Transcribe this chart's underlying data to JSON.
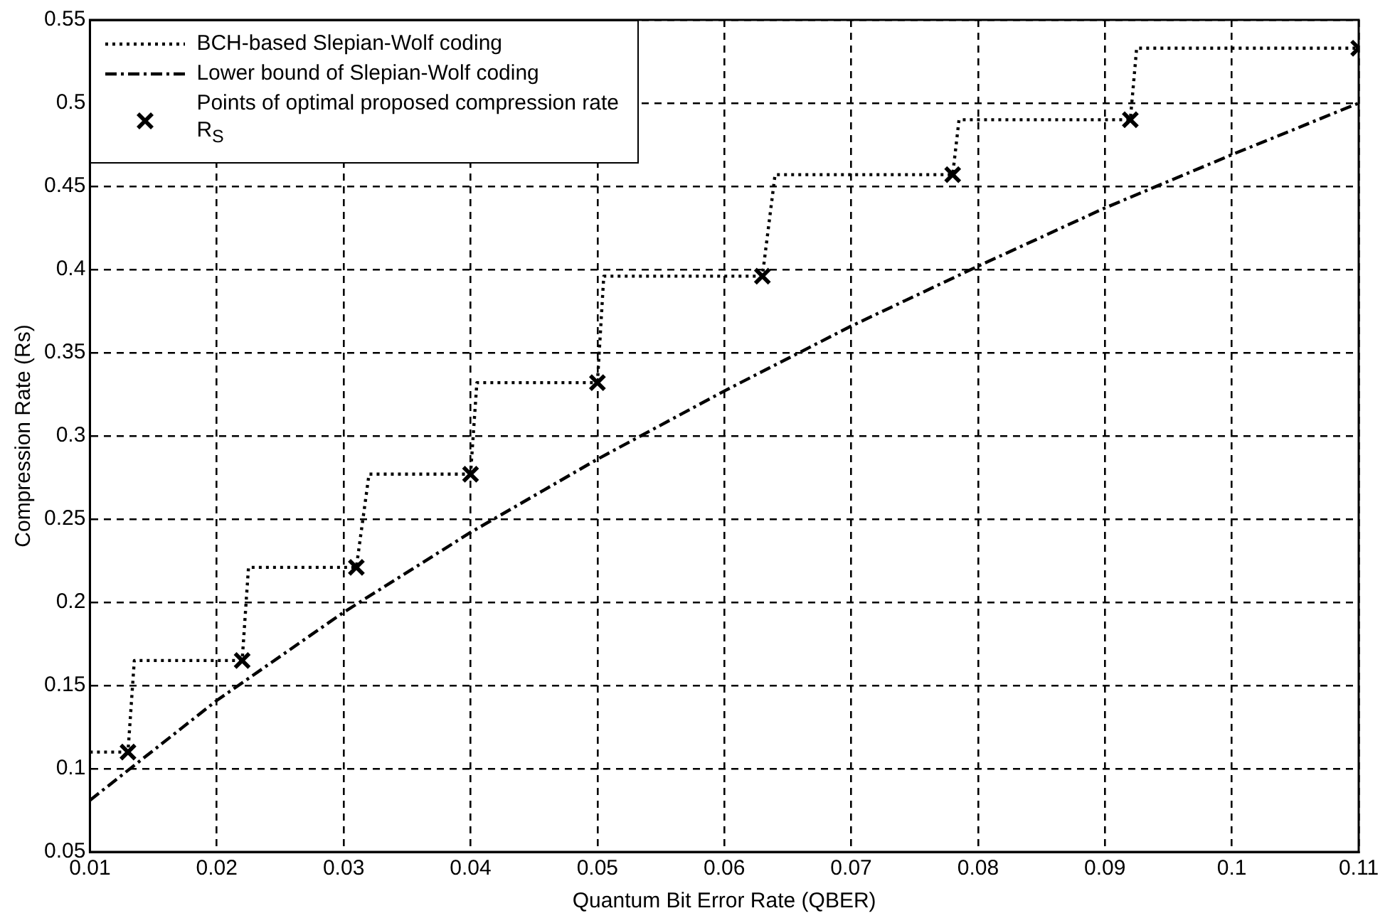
{
  "chart_data": {
    "type": "line",
    "xlabel": "Quantum Bit Error Rate (QBER)",
    "ylabel": "Compression Rate (Rs)",
    "xlim": [
      0.01,
      0.11
    ],
    "xticks": [
      0.01,
      0.02,
      0.03,
      0.04,
      0.05,
      0.06,
      0.07,
      0.08,
      0.09,
      0.1,
      0.11
    ],
    "ylim": [
      0.05,
      0.55
    ],
    "yticks": [
      0.05,
      0.1,
      0.15,
      0.2,
      0.25,
      0.3,
      0.35,
      0.4,
      0.45,
      0.5,
      0.55
    ],
    "grid": true,
    "legend": "top left",
    "series": [
      {
        "type": "line",
        "name": "BCH-based Slepian-Wolf coding",
        "color": "#000000",
        "line_style": "dotted",
        "marker": "none",
        "x": [
          0.01,
          0.013,
          0.0135,
          0.022,
          0.0225,
          0.031,
          0.032,
          0.04,
          0.0405,
          0.05,
          0.0505,
          0.063,
          0.064,
          0.078,
          0.0785,
          0.092,
          0.0925,
          0.11
        ],
        "values": [
          0.11,
          0.11,
          0.165,
          0.165,
          0.221,
          0.221,
          0.277,
          0.277,
          0.332,
          0.332,
          0.396,
          0.396,
          0.457,
          0.457,
          0.49,
          0.49,
          0.533,
          0.533
        ]
      },
      {
        "type": "line",
        "name": "Lower bound of Slepian-Wolf coding",
        "color": "#000000",
        "line_style": "dashdot",
        "marker": "none",
        "x": [
          0.01,
          0.02,
          0.03,
          0.04,
          0.05,
          0.06,
          0.07,
          0.08,
          0.09,
          0.1,
          0.11
        ],
        "values": [
          0.081,
          0.141,
          0.194,
          0.242,
          0.286,
          0.327,
          0.366,
          0.402,
          0.437,
          0.469,
          0.5
        ]
      },
      {
        "type": "scatter",
        "name": "Points of optimal proposed compression rate R$_{S}$",
        "color": "#000000",
        "marker": "cross",
        "x": [
          0.013,
          0.022,
          0.031,
          0.04,
          0.05,
          0.063,
          0.078,
          0.092,
          0.11
        ],
        "values": [
          0.11,
          0.165,
          0.221,
          0.277,
          0.332,
          0.396,
          0.457,
          0.49,
          0.533
        ]
      }
    ]
  }
}
